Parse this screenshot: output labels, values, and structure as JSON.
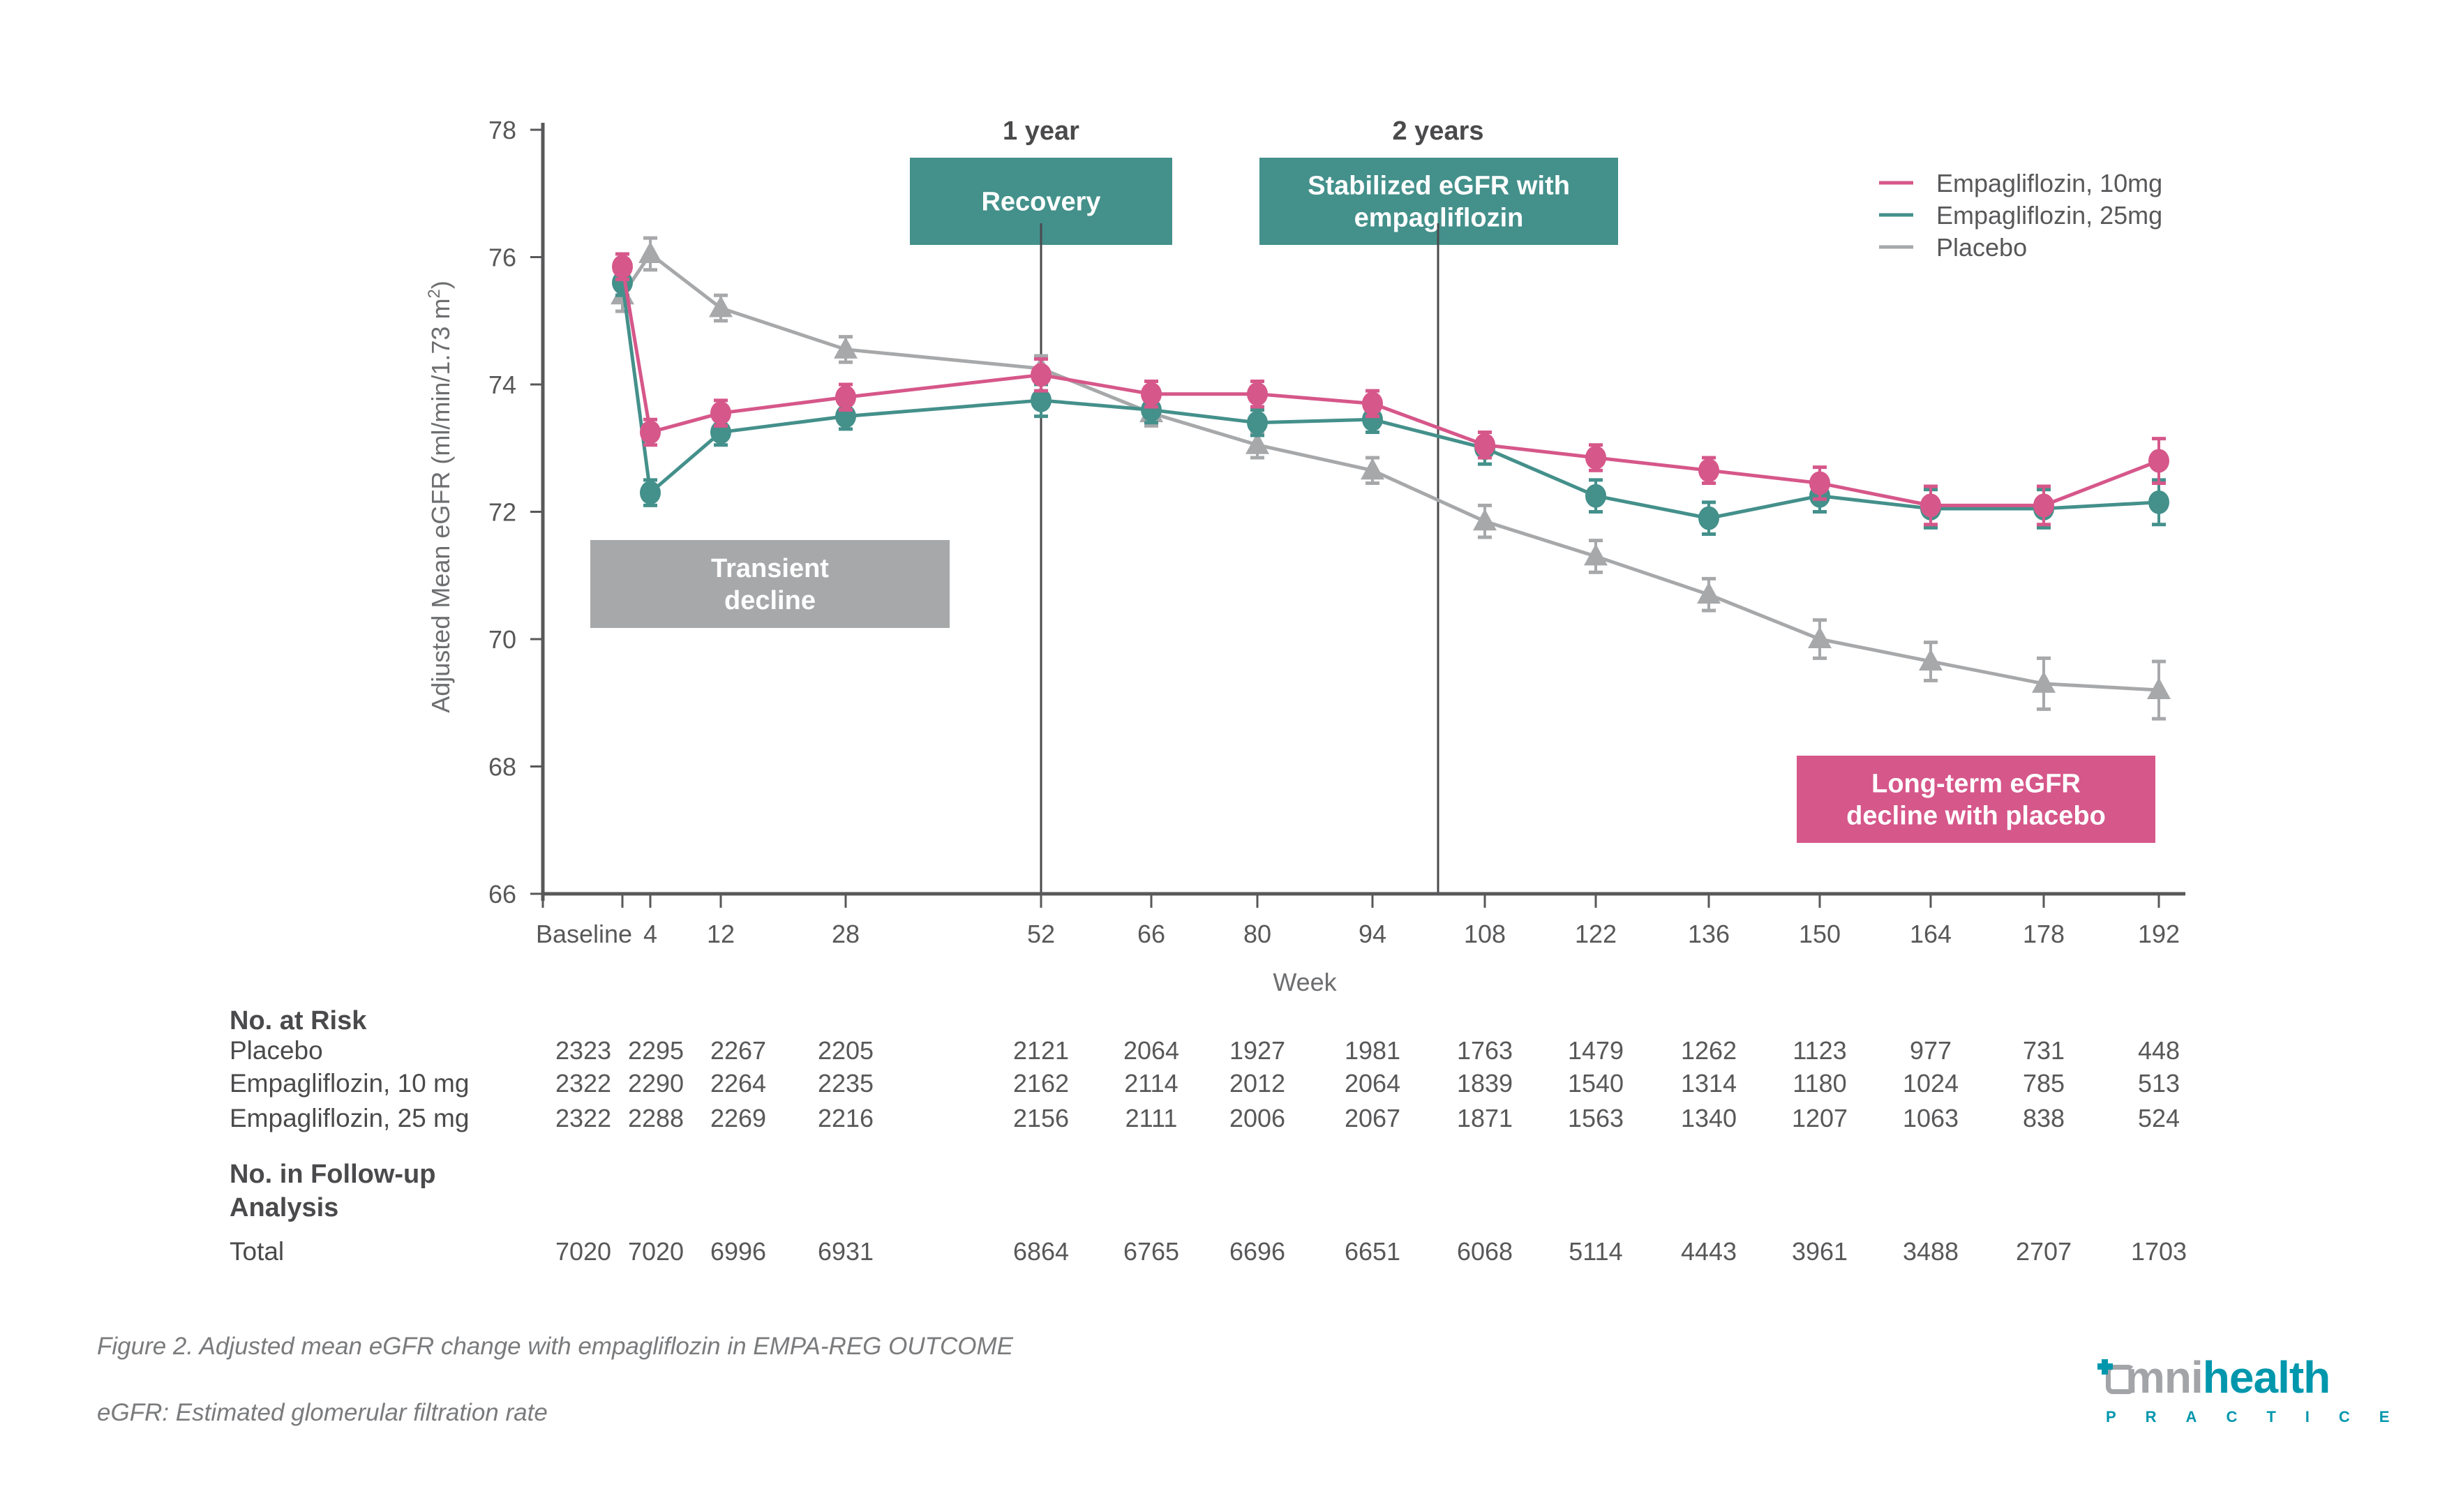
{
  "chart_data": {
    "type": "line",
    "title": "",
    "xlabel": "Week",
    "ylabel": "Adjusted Mean eGFR (ml/min/1.73 m²)",
    "ylabel_main": "Adjusted Mean eGFR (ml/min/1.73 m",
    "ylabel_sup": "2",
    "ylabel_close": ")",
    "ylim": [
      66,
      78
    ],
    "yticks": [
      "66",
      "68",
      "70",
      "72",
      "74",
      "76",
      "78"
    ],
    "ytick_values": [
      66,
      68,
      70,
      72,
      74,
      76,
      78
    ],
    "categories": [
      "Baseline",
      "4",
      "12",
      "28",
      "52",
      "66",
      "80",
      "94",
      "108",
      "122",
      "136",
      "150",
      "164",
      "178",
      "192"
    ],
    "grid": false,
    "legend_position": "top-right",
    "series": [
      {
        "name": "Empagliflozin, 10mg",
        "color": "#d6578a",
        "marker": "circle",
        "values": [
          75.85,
          73.25,
          73.55,
          73.8,
          74.15,
          73.85,
          73.85,
          73.7,
          73.05,
          72.85,
          72.65,
          72.45,
          72.1,
          72.1,
          72.8
        ],
        "error": [
          0.2,
          0.2,
          0.2,
          0.2,
          0.25,
          0.2,
          0.2,
          0.2,
          0.2,
          0.2,
          0.2,
          0.25,
          0.3,
          0.3,
          0.35
        ]
      },
      {
        "name": "Empagliflozin, 25mg",
        "color": "#44908b",
        "marker": "circle",
        "values": [
          75.6,
          72.3,
          73.25,
          73.5,
          73.75,
          73.6,
          73.4,
          73.45,
          73.0,
          72.25,
          71.9,
          72.25,
          72.05,
          72.05,
          72.15
        ],
        "error": [
          0.2,
          0.2,
          0.2,
          0.2,
          0.25,
          0.2,
          0.2,
          0.2,
          0.25,
          0.25,
          0.25,
          0.25,
          0.3,
          0.3,
          0.35
        ]
      },
      {
        "name": "Placebo",
        "color": "#a7a8aa",
        "marker": "triangle",
        "values": [
          75.4,
          76.05,
          75.2,
          74.55,
          74.25,
          73.55,
          73.05,
          72.65,
          71.85,
          71.3,
          70.7,
          70.0,
          69.65,
          69.3,
          69.2
        ],
        "error": [
          0.25,
          0.25,
          0.2,
          0.2,
          0.2,
          0.2,
          0.2,
          0.2,
          0.25,
          0.25,
          0.25,
          0.3,
          0.3,
          0.4,
          0.45
        ]
      }
    ],
    "annotations": {
      "period_lines": [
        {
          "label": "1 year",
          "category": "52"
        },
        {
          "label": "2 years",
          "between": [
            "94",
            "108"
          ]
        }
      ],
      "boxes": [
        {
          "id": "transient",
          "lines": [
            "Transient",
            "decline"
          ],
          "color": "#a7a8aa"
        },
        {
          "id": "recovery",
          "lines": [
            "Recovery"
          ],
          "color": "#44908b"
        },
        {
          "id": "stabilized",
          "lines": [
            "Stabilized eGFR with",
            "empagliflozin"
          ],
          "color": "#44908b"
        },
        {
          "id": "longterm",
          "lines": [
            "Long-term eGFR",
            "decline with placebo"
          ],
          "color": "#d6578a"
        }
      ]
    }
  },
  "table": {
    "at_risk_heading": "No. at Risk",
    "rows": [
      {
        "label": "Placebo",
        "values": [
          "2323",
          "2295",
          "2267",
          "2205",
          "2121",
          "2064",
          "1927",
          "1981",
          "1763",
          "1479",
          "1262",
          "1123",
          "977",
          "731",
          "448"
        ]
      },
      {
        "label": "Empagliflozin, 10 mg",
        "values": [
          "2322",
          "2290",
          "2264",
          "2235",
          "2162",
          "2114",
          "2012",
          "2064",
          "1839",
          "1540",
          "1314",
          "1180",
          "1024",
          "785",
          "513"
        ]
      },
      {
        "label": "Empagliflozin, 25 mg",
        "values": [
          "2322",
          "2288",
          "2269",
          "2216",
          "2156",
          "2111",
          "2006",
          "2067",
          "1871",
          "1563",
          "1340",
          "1207",
          "1063",
          "838",
          "524"
        ]
      }
    ],
    "followup_heading_line1": "No. in Follow-up",
    "followup_heading_line2": "Analysis",
    "total": {
      "label": "Total",
      "values": [
        "7020",
        "7020",
        "6996",
        "6931",
        "6864",
        "6765",
        "6696",
        "6651",
        "6068",
        "5114",
        "4443",
        "3961",
        "3488",
        "2707",
        "1703"
      ]
    }
  },
  "captions": {
    "figure": "Figure 2. Adjusted mean eGFR change with empagliflozin in EMPA-REG OUTCOME",
    "abbreviation": "eGFR: Estimated glomerular filtration rate"
  },
  "logo": {
    "brand_part1": "mni",
    "brand_part2": "health",
    "tagline": "PRACTICE",
    "icon": "speech-bubble-cross-icon"
  }
}
